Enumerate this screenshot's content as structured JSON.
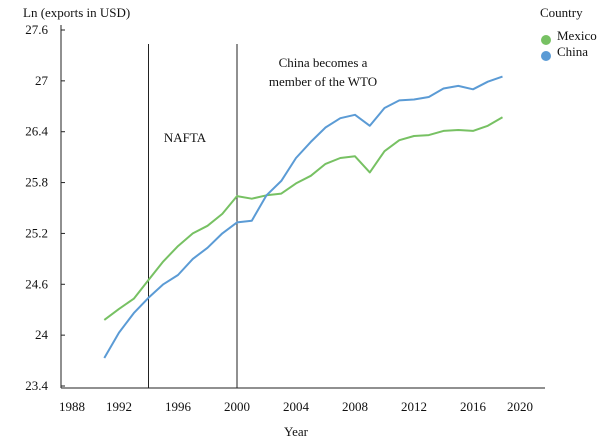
{
  "chart_data": {
    "type": "line",
    "title": "",
    "xlabel": "Year",
    "ylabel": "Ln (exports in USD)",
    "xlim": [
      1988,
      2020
    ],
    "ylim": [
      23.4,
      27.6
    ],
    "x_ticks": [
      "1988",
      "1992",
      "1996",
      "2000",
      "2004",
      "2008",
      "2012",
      "2016",
      "2020"
    ],
    "y_ticks": [
      "27.6",
      "27",
      "26.4",
      "25.8",
      "25.2",
      "24.6",
      "24",
      "23.4"
    ],
    "grid": false,
    "legend": {
      "title": "Country",
      "placement": "top-right"
    },
    "x": [
      1991,
      1992,
      1993,
      1994,
      1995,
      1996,
      1997,
      1998,
      1999,
      2000,
      2001,
      2002,
      2003,
      2004,
      2005,
      2006,
      2007,
      2008,
      2009,
      2010,
      2011,
      2012,
      2013,
      2014,
      2015,
      2016,
      2017,
      2018
    ],
    "series": [
      {
        "name": "Mexico",
        "color": "#77c163",
        "values": [
          24.18,
          24.31,
          24.43,
          24.65,
          24.87,
          25.05,
          25.2,
          25.29,
          25.43,
          25.64,
          25.61,
          25.65,
          25.67,
          25.79,
          25.88,
          26.02,
          26.09,
          26.11,
          25.92,
          26.17,
          26.3,
          26.35,
          26.36,
          26.41,
          26.42,
          26.41,
          26.47,
          26.57
        ]
      },
      {
        "name": "China",
        "color": "#5b9bd5",
        "values": [
          23.73,
          24.03,
          24.26,
          24.44,
          24.6,
          24.71,
          24.9,
          25.03,
          25.2,
          25.33,
          25.35,
          25.65,
          25.82,
          26.09,
          26.28,
          26.45,
          26.56,
          26.6,
          26.47,
          26.68,
          26.77,
          26.78,
          26.81,
          26.91,
          26.94,
          26.9,
          26.99,
          27.05
        ]
      }
    ],
    "annotations": [
      {
        "label": "NAFTA",
        "x": 1994
      },
      {
        "label": "China becomes a member of the WTO",
        "line1": "China becomes a",
        "line2": "member of the WTO",
        "x": 2000
      }
    ]
  }
}
